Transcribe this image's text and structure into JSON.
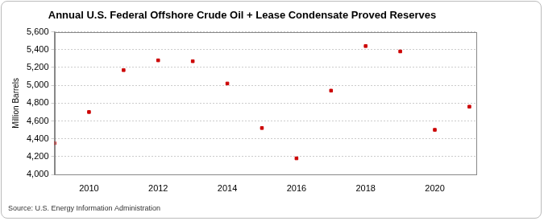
{
  "chart_data": {
    "type": "scatter",
    "title": "Annual U.S. Federal Offshore Crude Oil + Lease Condensate Proved Reserves",
    "y_label": "Million Barrels",
    "source": "Source: U.S. Energy Information Administration",
    "x": [
      2009,
      2010,
      2011,
      2012,
      2013,
      2014,
      2015,
      2016,
      2017,
      2018,
      2019,
      2020,
      2021
    ],
    "values": [
      4350,
      4700,
      5170,
      5280,
      5270,
      5020,
      4520,
      4180,
      4940,
      5440,
      5380,
      4500,
      4760
    ],
    "color": "#cc0000",
    "marker": "square",
    "xlim": [
      2009,
      2021.2
    ],
    "xticks": [
      2010,
      2012,
      2014,
      2016,
      2018,
      2020
    ],
    "ylim": [
      4000,
      5600
    ],
    "yticks": [
      {
        "value": 4000,
        "label": "4,000"
      },
      {
        "value": 4200,
        "label": "4,200"
      },
      {
        "value": 4400,
        "label": "4,400"
      },
      {
        "value": 4600,
        "label": "4,600"
      },
      {
        "value": 4800,
        "label": "4,800"
      },
      {
        "value": 5000,
        "label": "5,000"
      },
      {
        "value": 5200,
        "label": "5,200"
      },
      {
        "value": 5400,
        "label": "5,400"
      },
      {
        "value": 5600,
        "label": "5,600"
      }
    ],
    "grid": true
  }
}
